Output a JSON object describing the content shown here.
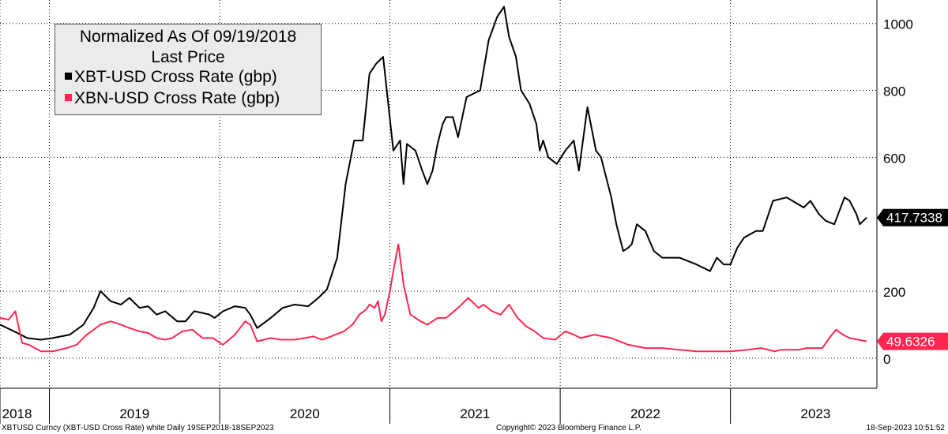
{
  "chart_data": {
    "type": "line",
    "title": "Normalized As Of 09/19/2018",
    "subtitle": "Last Price",
    "xlabel": "",
    "ylabel": "",
    "ylim": [
      -90,
      1070
    ],
    "yticks": [
      0,
      200,
      600,
      800,
      1000
    ],
    "ytick_labels": [
      "0",
      "200",
      "600",
      "800",
      "1000"
    ],
    "xlim": [
      2018.71,
      2023.86
    ],
    "x_year_boundaries": [
      2018.71,
      2019.0,
      2020.0,
      2021.0,
      2022.0,
      2023.0
    ],
    "x_labels": [
      {
        "label": "2018",
        "x": 2018.81
      },
      {
        "label": "2019",
        "x": 2019.5
      },
      {
        "label": "2020",
        "x": 2020.5
      },
      {
        "label": "2021",
        "x": 2021.5
      },
      {
        "label": "2022",
        "x": 2022.5
      },
      {
        "label": "2023",
        "x": 2023.5
      }
    ],
    "legend_position": "top-left",
    "grid": true,
    "series": [
      {
        "name": "XBT-USD Cross Rate (gbp)",
        "color": "#000000",
        "last_value": "417.7338",
        "x": [
          2018.71,
          2018.8,
          2018.87,
          2018.95,
          2019.02,
          2019.12,
          2019.2,
          2019.26,
          2019.3,
          2019.36,
          2019.42,
          2019.47,
          2019.53,
          2019.58,
          2019.63,
          2019.68,
          2019.75,
          2019.8,
          2019.85,
          2019.9,
          2019.94,
          2019.97,
          2020.02,
          2020.09,
          2020.15,
          2020.18,
          2020.22,
          2020.3,
          2020.37,
          2020.44,
          2020.52,
          2020.58,
          2020.63,
          2020.69,
          2020.74,
          2020.79,
          2020.84,
          2020.88,
          2020.92,
          2020.96,
          2021.02,
          2021.06,
          2021.08,
          2021.1,
          2021.15,
          2021.19,
          2021.22,
          2021.25,
          2021.28,
          2021.31,
          2021.33,
          2021.37,
          2021.4,
          2021.45,
          2021.53,
          2021.58,
          2021.63,
          2021.67,
          2021.7,
          2021.74,
          2021.77,
          2021.82,
          2021.86,
          2021.88,
          2021.9,
          2021.93,
          2021.98,
          2022.03,
          2022.08,
          2022.11,
          2022.16,
          2022.21,
          2022.24,
          2022.3,
          2022.33,
          2022.37,
          2022.4,
          2022.42,
          2022.45,
          2022.5,
          2022.55,
          2022.6,
          2022.7,
          2022.8,
          2022.84,
          2022.88,
          2022.92,
          2022.96,
          2023.0,
          2023.04,
          2023.08,
          2023.15,
          2023.19,
          2023.25,
          2023.33,
          2023.43,
          2023.47,
          2023.52,
          2023.56,
          2023.61,
          2023.67,
          2023.7,
          2023.74,
          2023.76,
          2023.8
        ],
        "y": [
          100,
          78,
          60,
          55,
          60,
          70,
          100,
          150,
          200,
          170,
          160,
          180,
          150,
          155,
          130,
          140,
          110,
          110,
          140,
          135,
          130,
          120,
          140,
          155,
          150,
          130,
          90,
          120,
          150,
          160,
          155,
          180,
          205,
          300,
          520,
          650,
          650,
          850,
          880,
          900,
          620,
          650,
          520,
          640,
          620,
          560,
          520,
          560,
          640,
          700,
          720,
          720,
          660,
          780,
          800,
          950,
          1020,
          1050,
          960,
          900,
          800,
          760,
          700,
          620,
          650,
          600,
          580,
          620,
          650,
          560,
          750,
          620,
          600,
          480,
          400,
          320,
          330,
          340,
          400,
          380,
          320,
          300,
          300,
          280,
          270,
          260,
          300,
          280,
          280,
          330,
          360,
          380,
          380,
          470,
          480,
          450,
          470,
          430,
          410,
          400,
          480,
          470,
          430,
          400,
          420
        ]
      },
      {
        "name": "XBN-USD Cross Rate (gbp)",
        "color": "#ff2750",
        "last_value": "49.6326",
        "x": [
          2018.71,
          2018.76,
          2018.8,
          2018.84,
          2018.88,
          2018.95,
          2019.02,
          2019.1,
          2019.16,
          2019.22,
          2019.3,
          2019.36,
          2019.42,
          2019.47,
          2019.53,
          2019.58,
          2019.63,
          2019.68,
          2019.72,
          2019.78,
          2019.84,
          2019.9,
          2019.96,
          2020.02,
          2020.09,
          2020.15,
          2020.18,
          2020.22,
          2020.3,
          2020.36,
          2020.44,
          2020.5,
          2020.55,
          2020.6,
          2020.63,
          2020.68,
          2020.73,
          2020.78,
          2020.82,
          2020.86,
          2020.88,
          2020.91,
          2020.93,
          2020.95,
          2020.97,
          2021.0,
          2021.02,
          2021.05,
          2021.08,
          2021.12,
          2021.18,
          2021.22,
          2021.28,
          2021.33,
          2021.4,
          2021.46,
          2021.52,
          2021.55,
          2021.6,
          2021.65,
          2021.7,
          2021.75,
          2021.8,
          2021.85,
          2021.9,
          2021.97,
          2022.03,
          2022.08,
          2022.12,
          2022.2,
          2022.3,
          2022.4,
          2022.5,
          2022.6,
          2022.7,
          2022.8,
          2022.9,
          2023.0,
          2023.1,
          2023.18,
          2023.22,
          2023.26,
          2023.3,
          2023.35,
          2023.4,
          2023.45,
          2023.5,
          2023.54,
          2023.58,
          2023.62,
          2023.66,
          2023.7,
          2023.75,
          2023.8
        ],
        "y": [
          120,
          115,
          140,
          45,
          40,
          20,
          20,
          30,
          40,
          70,
          100,
          110,
          100,
          90,
          80,
          75,
          60,
          55,
          60,
          80,
          85,
          60,
          60,
          40,
          70,
          110,
          100,
          50,
          60,
          55,
          55,
          60,
          65,
          55,
          60,
          70,
          80,
          100,
          130,
          145,
          160,
          150,
          170,
          110,
          130,
          200,
          260,
          340,
          220,
          130,
          110,
          100,
          120,
          120,
          150,
          180,
          150,
          160,
          140,
          130,
          160,
          120,
          95,
          80,
          60,
          55,
          80,
          70,
          60,
          70,
          60,
          40,
          30,
          30,
          25,
          20,
          20,
          20,
          25,
          30,
          25,
          20,
          25,
          25,
          25,
          30,
          30,
          30,
          60,
          85,
          70,
          60,
          55,
          50
        ]
      }
    ]
  },
  "footer": {
    "left": "XBTUSD Curncy (XBT-USD Cross Rate) white  Daily 19SEP2018-18SEP2023",
    "center": "Copyright© 2023 Bloomberg Finance L.P.",
    "right": "18-Sep-2023 10:51:52"
  }
}
